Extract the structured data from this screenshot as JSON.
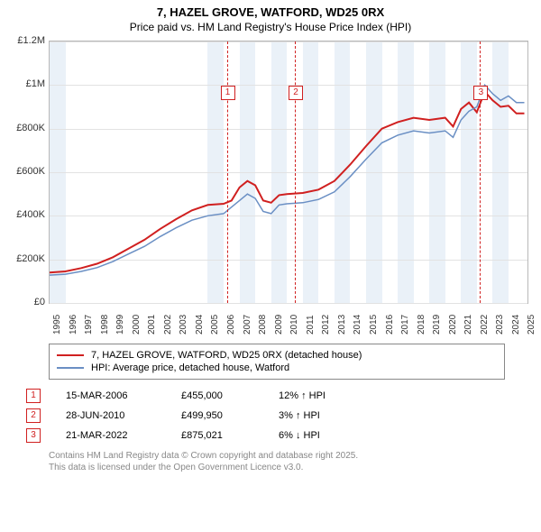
{
  "title_line1": "7, HAZEL GROVE, WATFORD, WD25 0RX",
  "title_line2": "Price paid vs. HM Land Registry's House Price Index (HPI)",
  "chart": {
    "type": "line",
    "background_color": "#ffffff",
    "grid_color": "#e2e2e2",
    "axis_color": "#b8b8b8",
    "shade_color": "#eaf1f8",
    "x_years": [
      1995,
      1996,
      1997,
      1998,
      1999,
      2000,
      2001,
      2002,
      2003,
      2004,
      2005,
      2006,
      2007,
      2008,
      2009,
      2010,
      2011,
      2012,
      2013,
      2014,
      2015,
      2016,
      2017,
      2018,
      2019,
      2020,
      2021,
      2022,
      2023,
      2024,
      2025
    ],
    "y_ticks": [
      0,
      200000,
      400000,
      600000,
      800000,
      1000000,
      1200000
    ],
    "y_tick_labels": [
      "£0",
      "£200K",
      "£400K",
      "£600K",
      "£800K",
      "£1M",
      "£1.2M"
    ],
    "ylim": [
      0,
      1200000
    ],
    "xlim": [
      1995,
      2025.2
    ],
    "shade_bands": [
      [
        1995,
        1996
      ],
      [
        2005,
        2006
      ],
      [
        2007,
        2008
      ],
      [
        2009,
        2010
      ],
      [
        2011,
        2012
      ],
      [
        2013,
        2014
      ],
      [
        2015,
        2016
      ],
      [
        2017,
        2018
      ],
      [
        2019,
        2020
      ],
      [
        2021,
        2022
      ],
      [
        2023,
        2024
      ]
    ],
    "series": [
      {
        "name": "7, HAZEL GROVE, WATFORD, WD25 0RX (detached house)",
        "color": "#d02020",
        "width": 2,
        "data": [
          [
            1995,
            140000
          ],
          [
            1996,
            145000
          ],
          [
            1997,
            160000
          ],
          [
            1998,
            180000
          ],
          [
            1999,
            210000
          ],
          [
            2000,
            250000
          ],
          [
            2001,
            290000
          ],
          [
            2002,
            340000
          ],
          [
            2003,
            385000
          ],
          [
            2004,
            425000
          ],
          [
            2005,
            450000
          ],
          [
            2006,
            455000
          ],
          [
            2006.5,
            470000
          ],
          [
            2007,
            530000
          ],
          [
            2007.5,
            560000
          ],
          [
            2008,
            540000
          ],
          [
            2008.5,
            470000
          ],
          [
            2009,
            460000
          ],
          [
            2009.5,
            495000
          ],
          [
            2010,
            500000
          ],
          [
            2011,
            505000
          ],
          [
            2012,
            520000
          ],
          [
            2013,
            560000
          ],
          [
            2014,
            635000
          ],
          [
            2015,
            720000
          ],
          [
            2016,
            800000
          ],
          [
            2017,
            830000
          ],
          [
            2018,
            850000
          ],
          [
            2019,
            840000
          ],
          [
            2020,
            850000
          ],
          [
            2020.5,
            810000
          ],
          [
            2021,
            890000
          ],
          [
            2021.5,
            920000
          ],
          [
            2022,
            875000
          ],
          [
            2022.5,
            970000
          ],
          [
            2023,
            930000
          ],
          [
            2023.5,
            900000
          ],
          [
            2024,
            905000
          ],
          [
            2024.5,
            870000
          ],
          [
            2025,
            870000
          ]
        ]
      },
      {
        "name": "HPI: Average price, detached house, Watford",
        "color": "#6a8fc4",
        "width": 1.5,
        "data": [
          [
            1995,
            128000
          ],
          [
            1996,
            132000
          ],
          [
            1997,
            145000
          ],
          [
            1998,
            162000
          ],
          [
            1999,
            190000
          ],
          [
            2000,
            225000
          ],
          [
            2001,
            260000
          ],
          [
            2002,
            305000
          ],
          [
            2003,
            345000
          ],
          [
            2004,
            380000
          ],
          [
            2005,
            400000
          ],
          [
            2006,
            410000
          ],
          [
            2007,
            470000
          ],
          [
            2007.5,
            500000
          ],
          [
            2008,
            480000
          ],
          [
            2008.5,
            420000
          ],
          [
            2009,
            410000
          ],
          [
            2009.5,
            450000
          ],
          [
            2010,
            455000
          ],
          [
            2011,
            460000
          ],
          [
            2012,
            475000
          ],
          [
            2013,
            510000
          ],
          [
            2014,
            580000
          ],
          [
            2015,
            660000
          ],
          [
            2016,
            735000
          ],
          [
            2017,
            770000
          ],
          [
            2018,
            790000
          ],
          [
            2019,
            780000
          ],
          [
            2020,
            790000
          ],
          [
            2020.5,
            760000
          ],
          [
            2021,
            840000
          ],
          [
            2021.5,
            880000
          ],
          [
            2022,
            900000
          ],
          [
            2022.5,
            1000000
          ],
          [
            2023,
            960000
          ],
          [
            2023.5,
            930000
          ],
          [
            2024,
            950000
          ],
          [
            2024.5,
            920000
          ],
          [
            2025,
            920000
          ]
        ]
      }
    ],
    "markers": [
      {
        "n": "1",
        "x": 2006.2,
        "label_y": 0.17
      },
      {
        "n": "2",
        "x": 2010.5,
        "label_y": 0.17
      },
      {
        "n": "3",
        "x": 2022.2,
        "label_y": 0.17
      }
    ]
  },
  "legend": {
    "items": [
      {
        "color": "#d02020",
        "label": "7, HAZEL GROVE, WATFORD, WD25 0RX (detached house)"
      },
      {
        "color": "#6a8fc4",
        "label": "HPI: Average price, detached house, Watford"
      }
    ]
  },
  "sales": [
    {
      "n": "1",
      "date": "15-MAR-2006",
      "price": "£455,000",
      "hpi": "12% ↑ HPI"
    },
    {
      "n": "2",
      "date": "28-JUN-2010",
      "price": "£499,950",
      "hpi": "3% ↑ HPI"
    },
    {
      "n": "3",
      "date": "21-MAR-2022",
      "price": "£875,021",
      "hpi": "6% ↓ HPI"
    }
  ],
  "footer_line1": "Contains HM Land Registry data © Crown copyright and database right 2025.",
  "footer_line2": "This data is licensed under the Open Government Licence v3.0."
}
